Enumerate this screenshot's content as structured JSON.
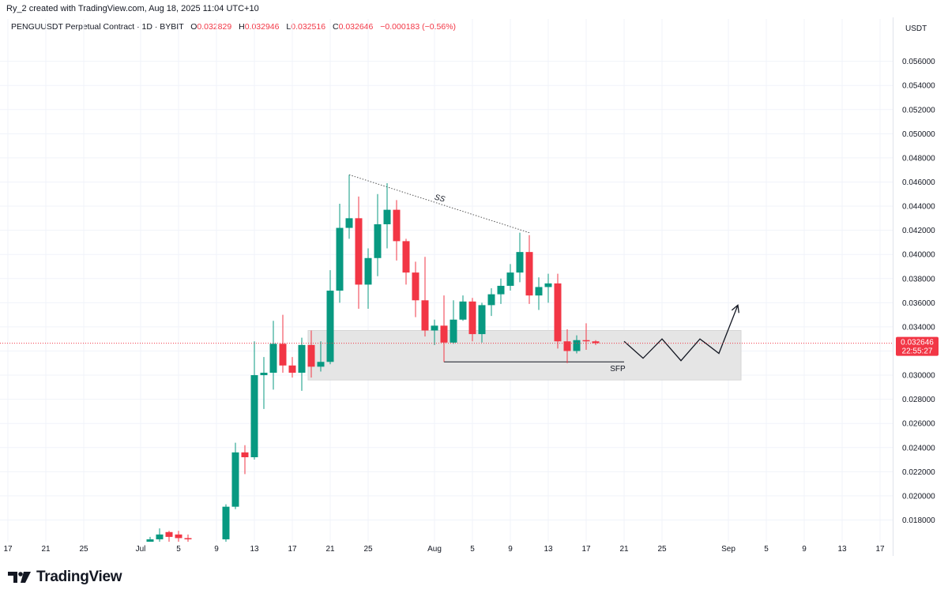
{
  "header": {
    "text": "Ry_2 created with TradingView.com, Aug 18, 2025 11:04 UTC+10"
  },
  "infobar": {
    "symbol": "PENGUUSDT Perpetual Contract · 1D · BYBIT",
    "o_label": "O",
    "o_value": "0.032829",
    "h_label": "H",
    "h_value": "0.032946",
    "l_label": "L",
    "l_value": "0.032516",
    "c_label": "C",
    "c_value": "0.032646",
    "change": "−0.000183 (−0.56%)"
  },
  "currency_label": "USDT",
  "brand": "TradingView",
  "colors": {
    "up": "#26a69a",
    "up_body": "#089981",
    "down": "#f23645",
    "last_price": "#f23645",
    "zone": "#e5e5e5",
    "grid": "#f0f3fa"
  },
  "chart_data": {
    "type": "candlestick",
    "symbol": "PENGUUSDT",
    "interval": "1D",
    "exchange": "BYBIT",
    "ylim": [
      0.0162,
      0.0582
    ],
    "y_ticks": [
      "0.018000",
      "0.020000",
      "0.022000",
      "0.024000",
      "0.026000",
      "0.028000",
      "0.030000",
      "0.032000",
      "0.034000",
      "0.036000",
      "0.038000",
      "0.040000",
      "0.042000",
      "0.044000",
      "0.046000",
      "0.048000",
      "0.050000",
      "0.052000",
      "0.054000",
      "0.056000"
    ],
    "x_ticks": [
      {
        "label": "17",
        "date": "2025-06-17"
      },
      {
        "label": "21",
        "date": "2025-06-21"
      },
      {
        "label": "25",
        "date": "2025-06-25"
      },
      {
        "label": "Jul",
        "date": "2025-07-01"
      },
      {
        "label": "5",
        "date": "2025-07-05"
      },
      {
        "label": "9",
        "date": "2025-07-09"
      },
      {
        "label": "13",
        "date": "2025-07-13"
      },
      {
        "label": "17",
        "date": "2025-07-17"
      },
      {
        "label": "21",
        "date": "2025-07-21"
      },
      {
        "label": "25",
        "date": "2025-07-25"
      },
      {
        "label": "Aug",
        "date": "2025-08-01"
      },
      {
        "label": "5",
        "date": "2025-08-05"
      },
      {
        "label": "9",
        "date": "2025-08-09"
      },
      {
        "label": "13",
        "date": "2025-08-13"
      },
      {
        "label": "17",
        "date": "2025-08-17"
      },
      {
        "label": "21",
        "date": "2025-08-21"
      },
      {
        "label": "25",
        "date": "2025-08-25"
      },
      {
        "label": "Sep",
        "date": "2025-09-01"
      },
      {
        "label": "5",
        "date": "2025-09-05"
      },
      {
        "label": "9",
        "date": "2025-09-09"
      },
      {
        "label": "13",
        "date": "2025-09-13"
      },
      {
        "label": "17",
        "date": "2025-09-17"
      }
    ],
    "last_price": {
      "value": 0.032646,
      "price_label": "0.032646",
      "countdown": "22:55:27"
    },
    "candles": [
      {
        "date": "2025-07-02",
        "o": 0.0162,
        "h": 0.0166,
        "l": 0.0162,
        "c": 0.0164
      },
      {
        "date": "2025-07-03",
        "o": 0.0164,
        "h": 0.0173,
        "l": 0.0162,
        "c": 0.0168
      },
      {
        "date": "2025-07-04",
        "o": 0.017,
        "h": 0.0171,
        "l": 0.0162,
        "c": 0.0166
      },
      {
        "date": "2025-07-05",
        "o": 0.0168,
        "h": 0.0171,
        "l": 0.0162,
        "c": 0.0165
      },
      {
        "date": "2025-07-06",
        "o": 0.0165,
        "h": 0.0168,
        "l": 0.0162,
        "c": 0.0164
      },
      {
        "date": "2025-07-10",
        "o": 0.0164,
        "h": 0.0193,
        "l": 0.0162,
        "c": 0.0191
      },
      {
        "date": "2025-07-11",
        "o": 0.0191,
        "h": 0.0244,
        "l": 0.0189,
        "c": 0.0236
      },
      {
        "date": "2025-07-12",
        "o": 0.0236,
        "h": 0.0242,
        "l": 0.0218,
        "c": 0.0232
      },
      {
        "date": "2025-07-13",
        "o": 0.0232,
        "h": 0.0328,
        "l": 0.023,
        "c": 0.03
      },
      {
        "date": "2025-07-14",
        "o": 0.03,
        "h": 0.0315,
        "l": 0.0272,
        "c": 0.0302
      },
      {
        "date": "2025-07-15",
        "o": 0.0302,
        "h": 0.0345,
        "l": 0.0288,
        "c": 0.0326
      },
      {
        "date": "2025-07-16",
        "o": 0.0326,
        "h": 0.035,
        "l": 0.0302,
        "c": 0.0308
      },
      {
        "date": "2025-07-17",
        "o": 0.0308,
        "h": 0.0315,
        "l": 0.0298,
        "c": 0.0302
      },
      {
        "date": "2025-07-18",
        "o": 0.0302,
        "h": 0.0331,
        "l": 0.0287,
        "c": 0.0325
      },
      {
        "date": "2025-07-19",
        "o": 0.0325,
        "h": 0.0337,
        "l": 0.0298,
        "c": 0.0307
      },
      {
        "date": "2025-07-20",
        "o": 0.0307,
        "h": 0.0328,
        "l": 0.0303,
        "c": 0.0311
      },
      {
        "date": "2025-07-21",
        "o": 0.0311,
        "h": 0.0387,
        "l": 0.0309,
        "c": 0.037
      },
      {
        "date": "2025-07-22",
        "o": 0.037,
        "h": 0.0442,
        "l": 0.036,
        "c": 0.0422
      },
      {
        "date": "2025-07-23",
        "o": 0.0422,
        "h": 0.0466,
        "l": 0.0413,
        "c": 0.043
      },
      {
        "date": "2025-07-24",
        "o": 0.043,
        "h": 0.0448,
        "l": 0.0355,
        "c": 0.0375
      },
      {
        "date": "2025-07-25",
        "o": 0.0375,
        "h": 0.0405,
        "l": 0.0355,
        "c": 0.0397
      },
      {
        "date": "2025-07-26",
        "o": 0.0397,
        "h": 0.045,
        "l": 0.0382,
        "c": 0.0425
      },
      {
        "date": "2025-07-27",
        "o": 0.0425,
        "h": 0.0459,
        "l": 0.0405,
        "c": 0.0437
      },
      {
        "date": "2025-07-28",
        "o": 0.0437,
        "h": 0.0445,
        "l": 0.0395,
        "c": 0.0411
      },
      {
        "date": "2025-07-29",
        "o": 0.0411,
        "h": 0.0413,
        "l": 0.0375,
        "c": 0.0385
      },
      {
        "date": "2025-07-30",
        "o": 0.0385,
        "h": 0.0394,
        "l": 0.0348,
        "c": 0.0362
      },
      {
        "date": "2025-07-31",
        "o": 0.0362,
        "h": 0.0398,
        "l": 0.0332,
        "c": 0.0337
      },
      {
        "date": "2025-08-01",
        "o": 0.0337,
        "h": 0.0346,
        "l": 0.0325,
        "c": 0.0341
      },
      {
        "date": "2025-08-02",
        "o": 0.0341,
        "h": 0.0366,
        "l": 0.0311,
        "c": 0.0327
      },
      {
        "date": "2025-08-03",
        "o": 0.0327,
        "h": 0.0362,
        "l": 0.0326,
        "c": 0.0346
      },
      {
        "date": "2025-08-04",
        "o": 0.0346,
        "h": 0.0366,
        "l": 0.0345,
        "c": 0.0361
      },
      {
        "date": "2025-08-05",
        "o": 0.0361,
        "h": 0.0364,
        "l": 0.0328,
        "c": 0.0334
      },
      {
        "date": "2025-08-06",
        "o": 0.0334,
        "h": 0.036,
        "l": 0.0327,
        "c": 0.0358
      },
      {
        "date": "2025-08-07",
        "o": 0.0358,
        "h": 0.0372,
        "l": 0.0349,
        "c": 0.0367
      },
      {
        "date": "2025-08-08",
        "o": 0.0367,
        "h": 0.038,
        "l": 0.0359,
        "c": 0.0374
      },
      {
        "date": "2025-08-09",
        "o": 0.0374,
        "h": 0.0392,
        "l": 0.037,
        "c": 0.0385
      },
      {
        "date": "2025-08-10",
        "o": 0.0385,
        "h": 0.0418,
        "l": 0.0377,
        "c": 0.0402
      },
      {
        "date": "2025-08-11",
        "o": 0.0402,
        "h": 0.0416,
        "l": 0.0359,
        "c": 0.0366
      },
      {
        "date": "2025-08-12",
        "o": 0.0366,
        "h": 0.0381,
        "l": 0.0354,
        "c": 0.0373
      },
      {
        "date": "2025-08-13",
        "o": 0.0373,
        "h": 0.0384,
        "l": 0.036,
        "c": 0.0376
      },
      {
        "date": "2025-08-14",
        "o": 0.0376,
        "h": 0.0384,
        "l": 0.0322,
        "c": 0.0328
      },
      {
        "date": "2025-08-15",
        "o": 0.0328,
        "h": 0.0338,
        "l": 0.031,
        "c": 0.032
      },
      {
        "date": "2025-08-16",
        "o": 0.032,
        "h": 0.0333,
        "l": 0.0318,
        "c": 0.0329
      },
      {
        "date": "2025-08-17",
        "o": 0.0329,
        "h": 0.0343,
        "l": 0.0321,
        "c": 0.0328
      },
      {
        "date": "2025-08-18",
        "o": 0.0328,
        "h": 0.0329,
        "l": 0.0325,
        "c": 0.03265
      }
    ],
    "annotations": {
      "zone": {
        "start": "2025-07-19",
        "end": "2025-09-02",
        "low": 0.0296,
        "high": 0.0337
      },
      "trendline": {
        "start": {
          "date": "2025-07-23",
          "price": 0.0466
        },
        "end": {
          "date": "2025-08-11",
          "price": 0.0418
        },
        "label": "SS"
      },
      "sfp_line": {
        "start": {
          "date": "2025-08-02",
          "price": 0.0311
        },
        "end": {
          "date": "2025-08-21",
          "price": 0.0311
        },
        "label": "SFP"
      },
      "projection": [
        {
          "date": "2025-08-21",
          "price": 0.0328
        },
        {
          "date": "2025-08-23",
          "price": 0.0314
        },
        {
          "date": "2025-08-25",
          "price": 0.033
        },
        {
          "date": "2025-08-27",
          "price": 0.0312
        },
        {
          "date": "2025-08-29",
          "price": 0.033
        },
        {
          "date": "2025-08-31",
          "price": 0.0318
        },
        {
          "date": "2025-09-02",
          "price": 0.0358
        }
      ]
    }
  }
}
